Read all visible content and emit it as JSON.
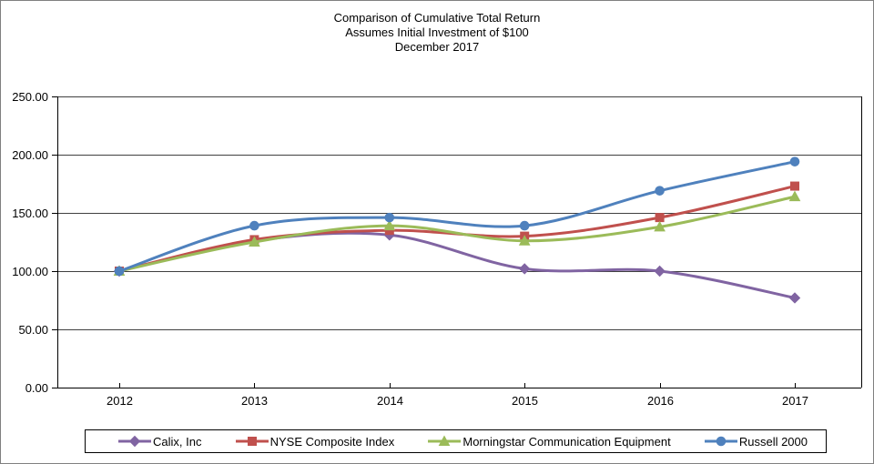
{
  "title": {
    "line1": "Comparison of Cumulative Total Return",
    "line2": "Assumes Initial Investment of $100",
    "line3": "December 2017"
  },
  "chart_data": {
    "type": "line",
    "smoothed": true,
    "title": "Comparison of Cumulative Total Return",
    "subtitle": "Assumes Initial Investment of $100",
    "date_label": "December 2017",
    "categories": [
      "2012",
      "2013",
      "2014",
      "2015",
      "2016",
      "2017"
    ],
    "series": [
      {
        "name": "Calix, Inc",
        "color": "#8064A2",
        "marker": "diamond",
        "values": [
          100,
          126,
          131,
          102,
          100,
          77
        ]
      },
      {
        "name": "NYSE Composite Index",
        "color": "#C0504D",
        "marker": "square",
        "values": [
          100,
          127,
          135,
          130,
          146,
          173
        ]
      },
      {
        "name": "Morningstar Communication Equipment",
        "color": "#9BBB59",
        "marker": "triangle",
        "values": [
          100,
          125,
          139,
          126,
          138,
          164
        ]
      },
      {
        "name": "Russell 2000",
        "color": "#4F81BD",
        "marker": "circle",
        "values": [
          100,
          139,
          146,
          139,
          169,
          194
        ]
      }
    ],
    "y_axis": {
      "min": 0,
      "max": 250,
      "step": 50,
      "tick_labels": [
        "0.00",
        "50.00",
        "100.00",
        "150.00",
        "200.00",
        "250.00"
      ]
    },
    "x_axis": {
      "tick_labels": [
        "2012",
        "2013",
        "2014",
        "2015",
        "2016",
        "2017"
      ]
    },
    "grid": true,
    "legend_position": "bottom",
    "colors": {
      "axis": "#000000",
      "gridline": "#404040",
      "background": "#ffffff"
    }
  }
}
